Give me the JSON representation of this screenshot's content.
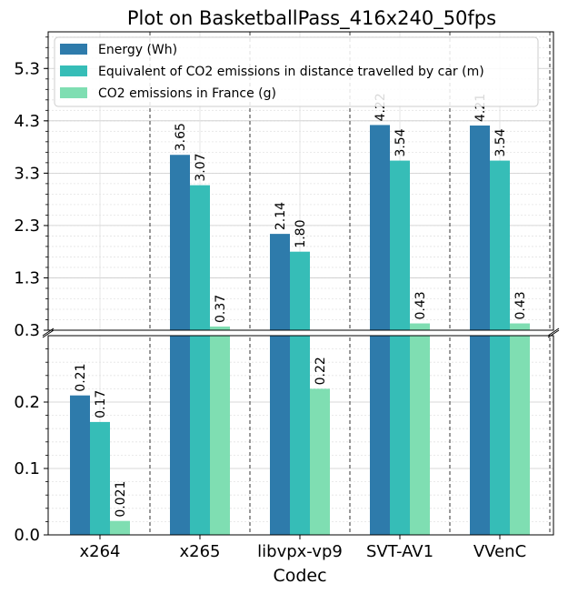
{
  "chart_data": {
    "type": "bar",
    "title": "Plot on BasketballPass_416x240_50fps",
    "xlabel": "Codec",
    "ylabel": "",
    "categories": [
      "x264",
      "x265",
      "libvpx-vp9",
      "SVT-AV1",
      "VVenC"
    ],
    "series": [
      {
        "name": "Energy (Wh)",
        "color": "#2e7bab",
        "values": [
          0.21,
          3.65,
          2.14,
          4.22,
          4.21
        ],
        "labels": [
          "0.21",
          "3.65",
          "2.14",
          "4.22",
          "4.21"
        ]
      },
      {
        "name": "Equivalent of CO2 emissions in distance travelled by car (m)",
        "color": "#36bdb7",
        "values": [
          0.17,
          3.07,
          1.8,
          3.54,
          3.54
        ],
        "labels": [
          "0.17",
          "3.07",
          "1.80",
          "3.54",
          "3.54"
        ]
      },
      {
        "name": "CO2 emissions in France (g)",
        "color": "#7fdeb2",
        "values": [
          0.021,
          0.37,
          0.22,
          0.43,
          0.43
        ],
        "labels": [
          "0.021",
          "0.37",
          "0.22",
          "0.43",
          "0.43"
        ]
      }
    ],
    "broken_axis": {
      "upper": {
        "ylim": [
          0.3,
          6.0
        ],
        "ticks": [
          "0.3",
          "1.3",
          "2.3",
          "3.3",
          "4.3",
          "5.3"
        ],
        "tick_values": [
          0.3,
          1.3,
          2.3,
          3.3,
          4.3,
          5.3
        ]
      },
      "lower": {
        "ylim": [
          0.0,
          0.3
        ],
        "ticks": [
          "0.0",
          "0.1",
          "0.2"
        ],
        "tick_values": [
          0.0,
          0.1,
          0.2
        ]
      }
    },
    "grid": true,
    "legend_position": "top-left"
  }
}
